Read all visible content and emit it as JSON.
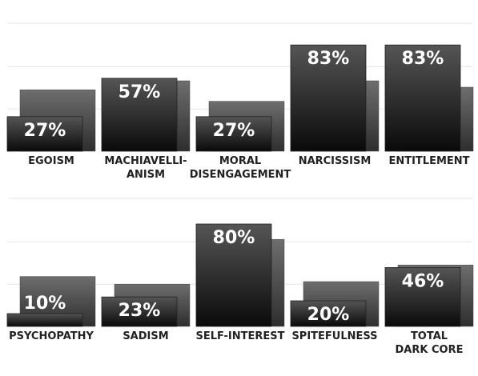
{
  "chart_data": [
    {
      "type": "bar",
      "categories": [
        [
          "EGOISM"
        ],
        [
          "MACHIAVELLI-",
          "ANISM"
        ],
        [
          "MORAL",
          "DISENGAGEMENT"
        ],
        [
          "NARCISSISM"
        ],
        [
          "ENTITLEMENT"
        ]
      ],
      "series": [
        {
          "values": [
            27,
            57,
            27,
            83,
            83
          ],
          "labels": [
            "27%",
            "57%",
            "27%",
            "83%",
            "83%"
          ]
        },
        {
          "values": [
            48,
            55,
            39,
            55,
            50
          ]
        }
      ],
      "ylim": [
        0,
        100
      ],
      "grid": true
    },
    {
      "type": "bar",
      "categories": [
        [
          "PSYCHOPATHY"
        ],
        [
          "SADISM"
        ],
        [
          "SELF-INTEREST"
        ],
        [
          "SPITEFULNESS"
        ],
        [
          "TOTAL",
          "DARK CORE"
        ]
      ],
      "series": [
        {
          "values": [
            10,
            23,
            80,
            20,
            46
          ],
          "labels": [
            "10%",
            "23%",
            "80%",
            "20%",
            "46%"
          ]
        },
        {
          "values": [
            39,
            33,
            68,
            35,
            48
          ]
        }
      ],
      "ylim": [
        0,
        100
      ],
      "grid": true
    }
  ],
  "colors": {
    "front_top": "#555555",
    "front_bottom": "#0a0a0a",
    "back_top": "#6e6e6e",
    "back_bottom": "#2e2e2e",
    "grid": "#e6e6e6",
    "value_text": "#ffffff",
    "category_text": "#222222"
  }
}
